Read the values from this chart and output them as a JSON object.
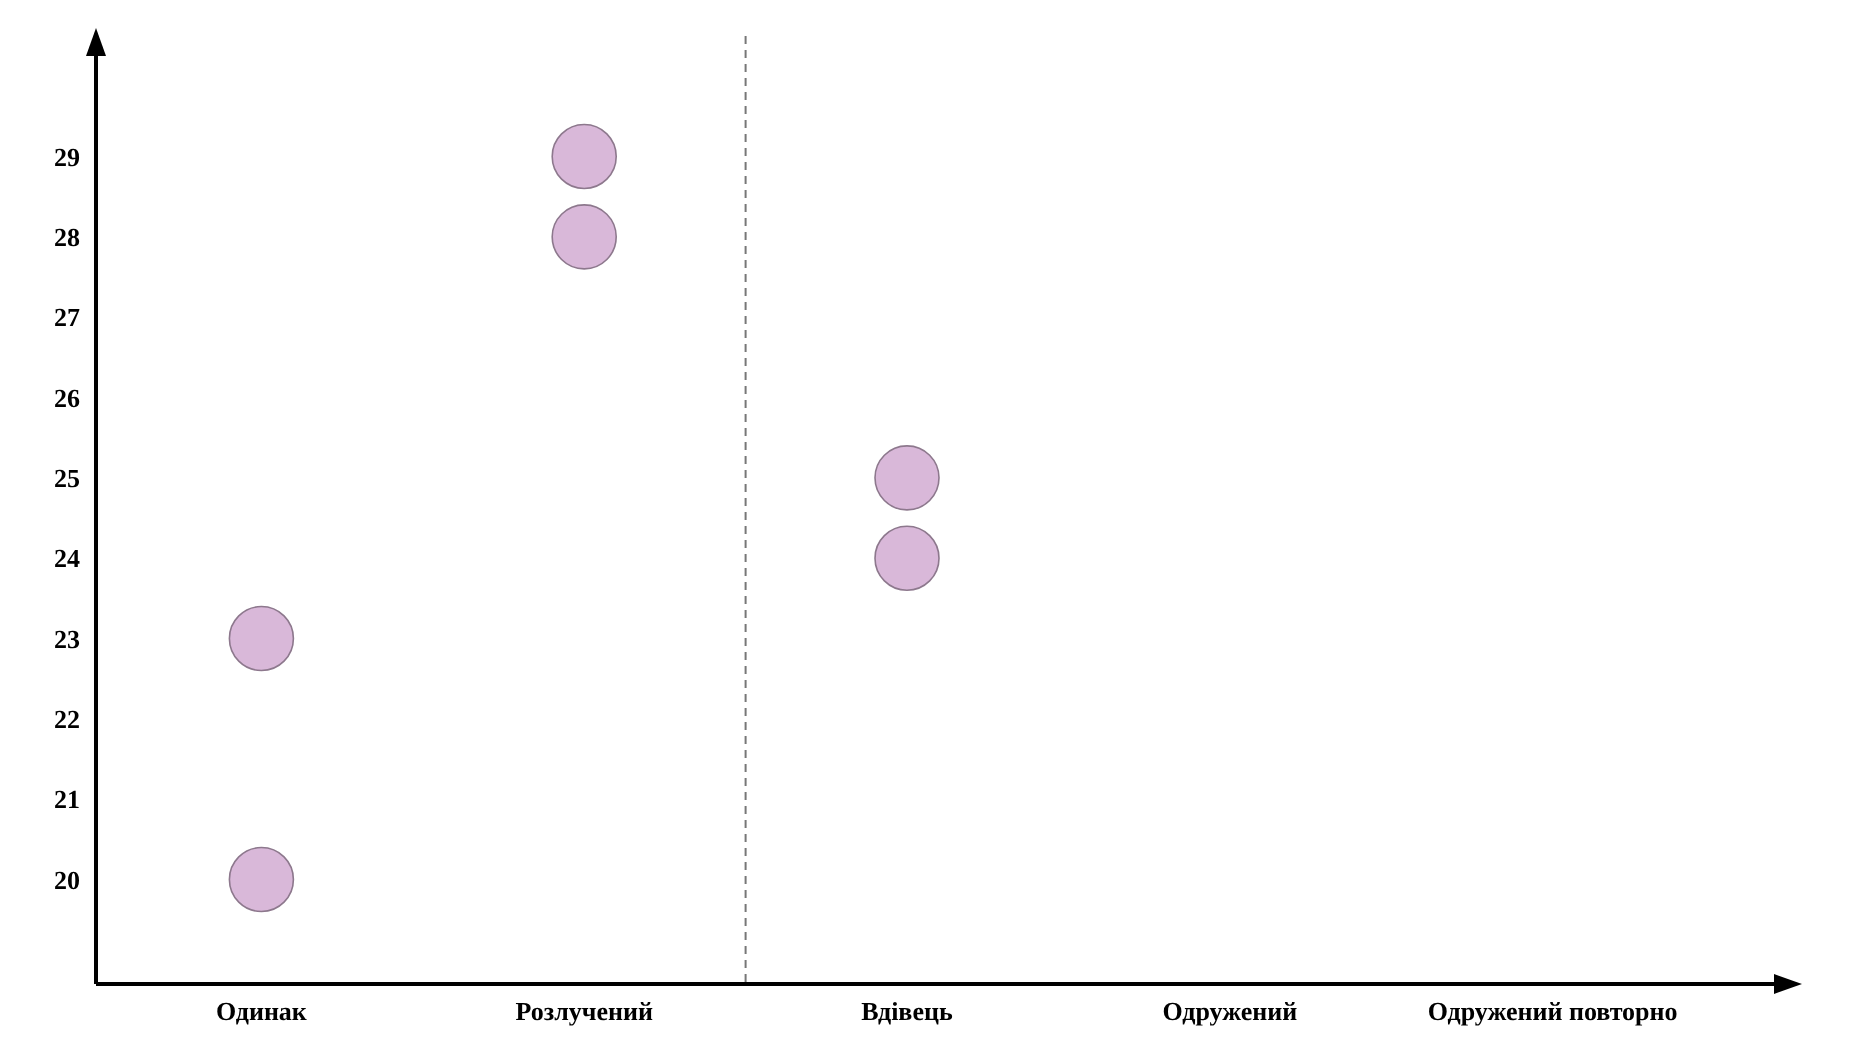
{
  "chart_data": {
    "type": "scatter",
    "categories": [
      "Одинак",
      "Розлучений",
      "Вдівець",
      "Одружений",
      "Одружений повторно"
    ],
    "series": [
      {
        "color": "#d9b8d9",
        "x": [
          "Одинак",
          "Одинак",
          "Розлучений",
          "Розлучений",
          "Вдівець",
          "Вдівець"
        ],
        "values": [
          20,
          23,
          28,
          29,
          24,
          25
        ]
      }
    ],
    "ylim": [
      18.7,
      30.5
    ],
    "yticks": [
      20,
      21,
      22,
      23,
      24,
      25,
      26,
      27,
      28,
      29
    ],
    "grid": false,
    "marker": "circle"
  }
}
